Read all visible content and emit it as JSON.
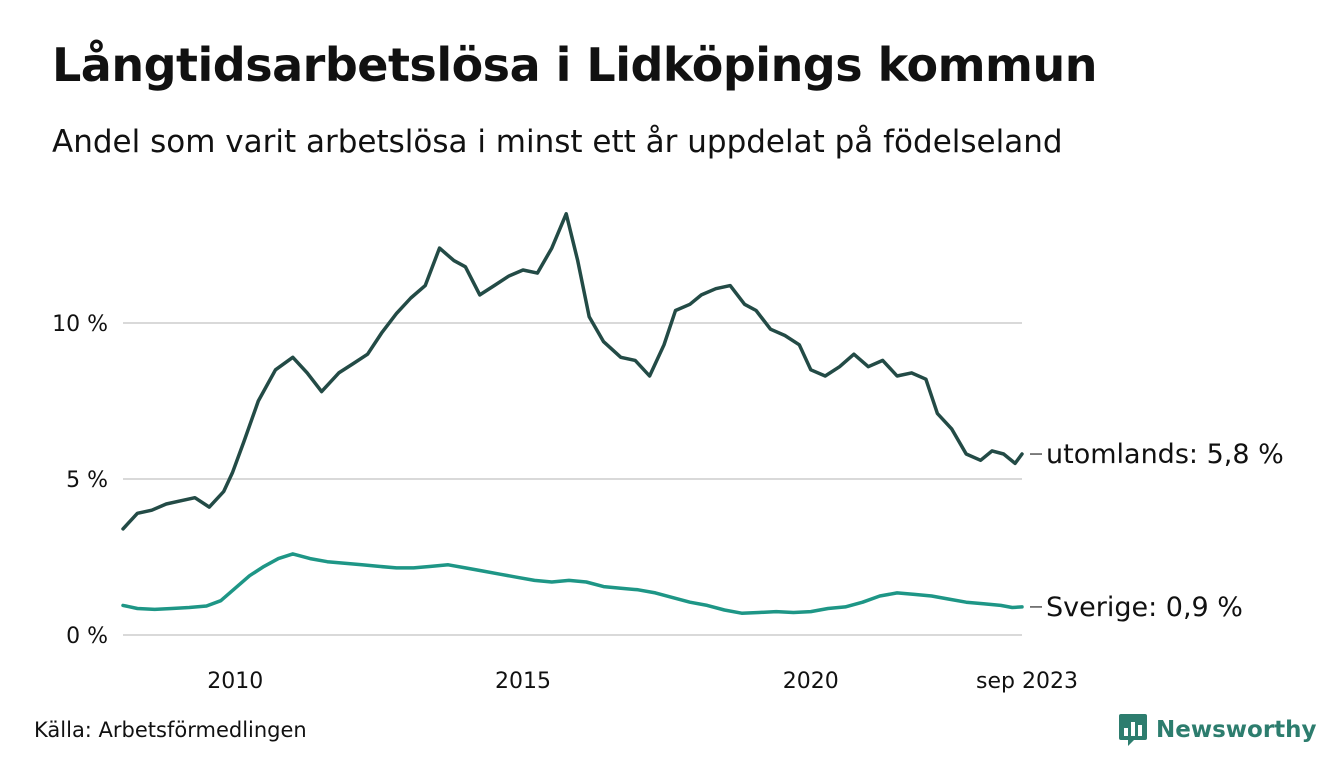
{
  "title": "Långtidsarbetslösa i Lidköpings kommun",
  "subtitle": "Andel som varit arbetslösa i minst ett år uppdelat på födelseland",
  "source": "Källa: Arbetsförmedlingen",
  "brand": {
    "name": "Newsworthy",
    "icon": "newsworthy-logo-icon",
    "color": "#2d7d6e"
  },
  "colors": {
    "utomlands": "#234b46",
    "sverige": "#1e9686",
    "grid": "#d9d9d9"
  },
  "chart_data": {
    "type": "line",
    "title": "Långtidsarbetslösa i Lidköpings kommun",
    "xlabel": "",
    "ylabel": "",
    "ylim": [
      0,
      14
    ],
    "xlim": [
      2008.05,
      2023.67
    ],
    "y_ticks": [
      0,
      5,
      10
    ],
    "y_tick_labels": [
      "0 %",
      "5 %",
      "10 %"
    ],
    "x_ticks": [
      2010,
      2015,
      2020,
      2023.67
    ],
    "x_tick_labels": [
      "2010",
      "2015",
      "2020",
      "sep 2023"
    ],
    "grid": true,
    "series": [
      {
        "name": "utomlands",
        "end_label": "utomlands: 5,8 %",
        "x": [
          2008.05,
          2008.3,
          2008.55,
          2008.8,
          2009.05,
          2009.3,
          2009.55,
          2009.8,
          2009.95,
          2010.15,
          2010.4,
          2010.7,
          2011.0,
          2011.25,
          2011.5,
          2011.8,
          2012.05,
          2012.3,
          2012.55,
          2012.8,
          2013.05,
          2013.3,
          2013.55,
          2013.8,
          2014.0,
          2014.25,
          2014.5,
          2014.75,
          2015.0,
          2015.25,
          2015.5,
          2015.75,
          2015.95,
          2016.15,
          2016.4,
          2016.7,
          2016.95,
          2017.2,
          2017.45,
          2017.65,
          2017.9,
          2018.1,
          2018.35,
          2018.6,
          2018.85,
          2019.05,
          2019.3,
          2019.55,
          2019.8,
          2020.0,
          2020.25,
          2020.5,
          2020.75,
          2021.0,
          2021.25,
          2021.5,
          2021.75,
          2022.0,
          2022.2,
          2022.45,
          2022.7,
          2022.95,
          2023.15,
          2023.35,
          2023.55,
          2023.67
        ],
        "values": [
          3.4,
          3.9,
          4.0,
          4.2,
          4.3,
          4.4,
          4.1,
          4.6,
          5.2,
          6.2,
          7.5,
          8.5,
          8.9,
          8.4,
          7.8,
          8.4,
          8.7,
          9.0,
          9.7,
          10.3,
          10.8,
          11.2,
          12.4,
          12.0,
          11.8,
          10.9,
          11.2,
          11.5,
          11.7,
          11.6,
          12.4,
          13.5,
          12.0,
          10.2,
          9.4,
          8.9,
          8.8,
          8.3,
          9.3,
          10.4,
          10.6,
          10.9,
          11.1,
          11.2,
          10.6,
          10.4,
          9.8,
          9.6,
          9.3,
          8.5,
          8.3,
          8.6,
          9.0,
          8.6,
          8.8,
          8.3,
          8.4,
          8.2,
          7.1,
          6.6,
          5.8,
          5.6,
          5.9,
          5.8,
          5.5,
          5.8
        ]
      },
      {
        "name": "Sverige",
        "end_label": "Sverige: 0,9 %",
        "x": [
          2008.05,
          2008.3,
          2008.6,
          2008.9,
          2009.2,
          2009.5,
          2009.75,
          2010.0,
          2010.25,
          2010.5,
          2010.75,
          2011.0,
          2011.3,
          2011.6,
          2011.9,
          2012.2,
          2012.5,
          2012.8,
          2013.1,
          2013.4,
          2013.7,
          2014.0,
          2014.3,
          2014.6,
          2014.9,
          2015.2,
          2015.5,
          2015.8,
          2016.1,
          2016.4,
          2016.7,
          2017.0,
          2017.3,
          2017.6,
          2017.9,
          2018.2,
          2018.5,
          2018.8,
          2019.1,
          2019.4,
          2019.7,
          2020.0,
          2020.3,
          2020.6,
          2020.9,
          2021.2,
          2021.5,
          2021.8,
          2022.1,
          2022.4,
          2022.7,
          2023.0,
          2023.3,
          2023.5,
          2023.67
        ],
        "values": [
          0.95,
          0.85,
          0.82,
          0.85,
          0.88,
          0.93,
          1.1,
          1.5,
          1.9,
          2.2,
          2.45,
          2.6,
          2.45,
          2.35,
          2.3,
          2.25,
          2.2,
          2.15,
          2.15,
          2.2,
          2.25,
          2.15,
          2.05,
          1.95,
          1.85,
          1.75,
          1.7,
          1.75,
          1.7,
          1.55,
          1.5,
          1.45,
          1.35,
          1.2,
          1.05,
          0.95,
          0.8,
          0.7,
          0.72,
          0.75,
          0.72,
          0.75,
          0.85,
          0.9,
          1.05,
          1.25,
          1.35,
          1.3,
          1.25,
          1.15,
          1.05,
          1.0,
          0.95,
          0.88,
          0.9
        ]
      }
    ]
  }
}
